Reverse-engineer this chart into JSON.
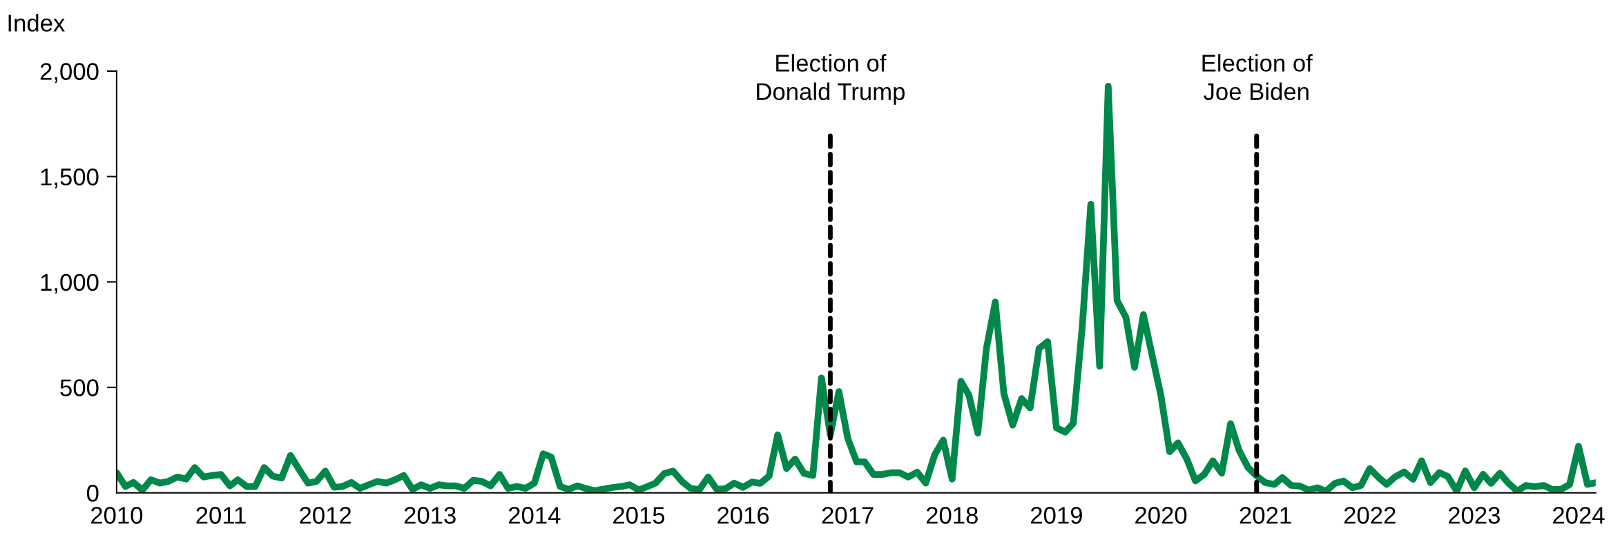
{
  "chart_data": {
    "type": "line",
    "ylabel": "Index",
    "x": [
      "2010-01",
      "2010-02",
      "2010-03",
      "2010-04",
      "2010-05",
      "2010-06",
      "2010-07",
      "2010-08",
      "2010-09",
      "2010-10",
      "2010-11",
      "2010-12",
      "2011-01",
      "2011-02",
      "2011-03",
      "2011-04",
      "2011-05",
      "2011-06",
      "2011-07",
      "2011-08",
      "2011-09",
      "2011-10",
      "2011-11",
      "2011-12",
      "2012-01",
      "2012-02",
      "2012-03",
      "2012-04",
      "2012-05",
      "2012-06",
      "2012-07",
      "2012-08",
      "2012-09",
      "2012-10",
      "2012-11",
      "2012-12",
      "2013-01",
      "2013-02",
      "2013-03",
      "2013-04",
      "2013-05",
      "2013-06",
      "2013-07",
      "2013-08",
      "2013-09",
      "2013-10",
      "2013-11",
      "2013-12",
      "2014-01",
      "2014-02",
      "2014-03",
      "2014-04",
      "2014-05",
      "2014-06",
      "2014-07",
      "2014-08",
      "2014-09",
      "2014-10",
      "2014-11",
      "2014-12",
      "2015-01",
      "2015-02",
      "2015-03",
      "2015-04",
      "2015-05",
      "2015-06",
      "2015-07",
      "2015-08",
      "2015-09",
      "2015-10",
      "2015-11",
      "2015-12",
      "2016-01",
      "2016-02",
      "2016-03",
      "2016-04",
      "2016-05",
      "2016-06",
      "2016-07",
      "2016-08",
      "2016-09",
      "2016-10",
      "2016-11",
      "2016-12",
      "2017-01",
      "2017-02",
      "2017-03",
      "2017-04",
      "2017-05",
      "2017-06",
      "2017-07",
      "2017-08",
      "2017-09",
      "2017-10",
      "2017-11",
      "2017-12",
      "2018-01",
      "2018-02",
      "2018-03",
      "2018-04",
      "2018-05",
      "2018-06",
      "2018-07",
      "2018-08",
      "2018-09",
      "2018-10",
      "2018-11",
      "2018-12",
      "2019-01",
      "2019-02",
      "2019-03",
      "2019-04",
      "2019-05",
      "2019-06",
      "2019-07",
      "2019-08",
      "2019-09",
      "2019-10",
      "2019-11",
      "2019-12",
      "2020-01",
      "2020-02",
      "2020-03",
      "2020-04",
      "2020-05",
      "2020-06",
      "2020-07",
      "2020-08",
      "2020-09",
      "2020-10",
      "2020-11",
      "2020-12",
      "2021-01",
      "2021-02",
      "2021-03",
      "2021-04",
      "2021-05",
      "2021-06",
      "2021-07",
      "2021-08",
      "2021-09",
      "2021-10",
      "2021-11",
      "2021-12",
      "2022-01",
      "2022-02",
      "2022-03",
      "2022-04",
      "2022-05",
      "2022-06",
      "2022-07",
      "2022-08",
      "2022-09",
      "2022-10",
      "2022-11",
      "2022-12",
      "2023-01",
      "2023-02",
      "2023-03",
      "2023-04",
      "2023-05",
      "2023-06",
      "2023-07",
      "2023-08",
      "2023-09",
      "2023-10",
      "2023-11",
      "2023-12",
      "2024-01",
      "2024-02",
      "2024-03"
    ],
    "series": [
      {
        "color": "#00884a",
        "values": [
          95,
          30,
          49,
          13,
          62,
          46,
          54,
          75,
          65,
          120,
          75,
          82,
          87,
          33,
          62,
          30,
          30,
          120,
          79,
          70,
          177,
          111,
          46,
          54,
          103,
          26,
          30,
          49,
          21,
          38,
          54,
          46,
          62,
          82,
          16,
          38,
          21,
          38,
          33,
          33,
          21,
          59,
          54,
          33,
          87,
          21,
          30,
          21,
          46,
          185,
          169,
          30,
          16,
          33,
          20,
          10,
          18,
          25,
          30,
          38,
          13,
          30,
          46,
          92,
          103,
          54,
          21,
          15,
          75,
          16,
          20,
          46,
          26,
          51,
          45,
          79,
          275,
          115,
          160,
          92,
          82,
          545,
          275,
          480,
          259,
          147,
          147,
          87,
          87,
          95,
          95,
          75,
          98,
          46,
          180,
          250,
          65,
          529,
          463,
          283,
          684,
          905,
          471,
          321,
          447,
          403,
          684,
          717,
          308,
          288,
          330,
          784,
          1368,
          600,
          1928,
          912,
          832,
          595,
          845,
          656,
          464,
          195,
          237,
          160,
          56,
          88,
          152,
          93,
          328,
          200,
          120,
          80,
          48,
          40,
          72,
          35,
          32,
          13,
          24,
          8,
          45,
          56,
          24,
          35,
          115,
          72,
          40,
          77,
          99,
          64,
          152,
          48,
          96,
          77,
          8,
          104,
          24,
          88,
          45,
          93,
          45,
          8,
          35,
          29,
          35,
          16,
          16,
          40,
          221,
          40,
          48
        ]
      }
    ],
    "xlim": [
      "2010-01",
      "2024-03"
    ],
    "xticks": [
      {
        "value": "2010-01",
        "label": "2010"
      },
      {
        "value": "2011-01",
        "label": "2011"
      },
      {
        "value": "2012-01",
        "label": "2012"
      },
      {
        "value": "2013-01",
        "label": "2013"
      },
      {
        "value": "2014-01",
        "label": "2014"
      },
      {
        "value": "2015-01",
        "label": "2015"
      },
      {
        "value": "2016-01",
        "label": "2016"
      },
      {
        "value": "2017-01",
        "label": "2017"
      },
      {
        "value": "2018-01",
        "label": "2018"
      },
      {
        "value": "2019-01",
        "label": "2019"
      },
      {
        "value": "2020-01",
        "label": "2020"
      },
      {
        "value": "2021-01",
        "label": "2021"
      },
      {
        "value": "2022-01",
        "label": "2022"
      },
      {
        "value": "2023-01",
        "label": "2023"
      },
      {
        "value": "2024-01",
        "label": "2024"
      }
    ],
    "ylim": [
      0,
      2000
    ],
    "yticks": [
      {
        "value": 0,
        "label": "0"
      },
      {
        "value": 500,
        "label": "500"
      },
      {
        "value": 1000,
        "label": "1,000"
      },
      {
        "value": 1500,
        "label": "1,500"
      },
      {
        "value": 2000,
        "label": "2,000"
      }
    ],
    "ref_lines": [
      {
        "axis": "x",
        "value": "2016-11",
        "label": "Election of\nDonald Trump",
        "color": "#000000",
        "line_style": "dashed"
      },
      {
        "axis": "x",
        "value": "2020-12",
        "label": "Election of\nJoe Biden",
        "color": "#000000",
        "line_style": "dashed"
      }
    ],
    "grid": false,
    "legend": false
  }
}
